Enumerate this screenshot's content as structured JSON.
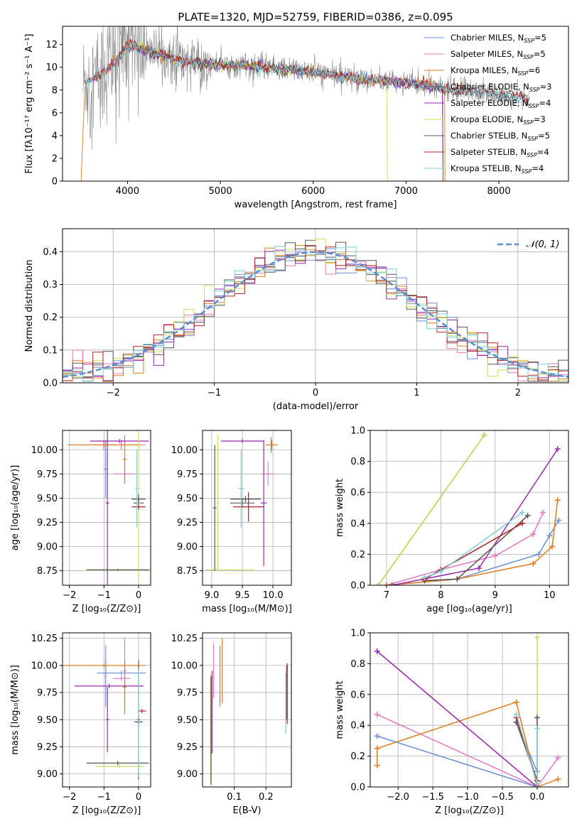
{
  "title": "PLATE=1320, MJD=52759, FIBERID=0386, z=0.095",
  "colors": {
    "Chabrier MILES": "#6a8fd8",
    "Salpeter MILES": "#e377c2",
    "Kroupa MILES": "#e07b1a",
    "Chabrier ELODIE": "#5a5a5a",
    "Salpeter ELODIE": "#9b27b0",
    "Kroupa ELODIE": "#c6e05a",
    "Chabrier STELIB": "#555555",
    "Salpeter STELIB": "#b22222",
    "Kroupa STELIB": "#7ccfdc",
    "gaussian": "#5b8bd6",
    "grid": "#b0b0b0"
  },
  "chart_data": [
    {
      "id": "spectrum",
      "type": "line",
      "title": "PLATE=1320, MJD=52759, FIBERID=0386, z=0.095",
      "xlabel": "wavelength [Angstrom, rest frame]",
      "ylabel": "Flux [fλ10⁻¹⁷ erg cm⁻² s⁻¹ A⁻¹]",
      "xlim": [
        3300,
        8750
      ],
      "ylim": [
        0,
        13.6
      ],
      "xticks": [
        "4000",
        "5000",
        "6000",
        "7000",
        "8000"
      ],
      "yticks": [
        "0",
        "2",
        "4",
        "6",
        "8",
        "10",
        "12"
      ],
      "grid": false,
      "legend_position": "top-right",
      "legend": [
        {
          "label": "Chabrier MILES, N",
          "sub": "SSP",
          "tail": "=5",
          "color_key": "Chabrier MILES"
        },
        {
          "label": "Salpeter MILES, N",
          "sub": "SSP",
          "tail": "=5",
          "color_key": "Salpeter MILES"
        },
        {
          "label": "Kroupa MILES, N",
          "sub": "SSP",
          "tail": "=6",
          "color_key": "Kroupa MILES"
        },
        {
          "label": "Chabrier ELODIE, N",
          "sub": "SSP",
          "tail": "=3",
          "color_key": "Chabrier ELODIE"
        },
        {
          "label": "Salpeter ELODIE, N",
          "sub": "SSP",
          "tail": "=4",
          "color_key": "Salpeter ELODIE"
        },
        {
          "label": "Kroupa ELODIE, N",
          "sub": "SSP",
          "tail": "=3",
          "color_key": "Kroupa ELODIE"
        },
        {
          "label": "Chabrier STELIB, N",
          "sub": "SSP",
          "tail": "=5",
          "color_key": "Chabrier STELIB"
        },
        {
          "label": "Salpeter STELIB, N",
          "sub": "SSP",
          "tail": "=4",
          "color_key": "Salpeter STELIB"
        },
        {
          "label": "Kroupa STELIB, N",
          "sub": "SSP",
          "tail": "=4",
          "color_key": "Kroupa STELIB"
        }
      ],
      "continuum": {
        "x": [
          3500,
          3700,
          3900,
          4000,
          4100,
          4300,
          4500,
          4700,
          5000,
          5300,
          5600,
          6000,
          6300,
          6600,
          6900,
          7200,
          7500,
          7800,
          8100,
          8300
        ],
        "y": [
          8.5,
          9.4,
          10.6,
          12.0,
          11.8,
          11.2,
          10.7,
          10.4,
          10.2,
          10.1,
          9.9,
          9.6,
          9.2,
          8.9,
          8.7,
          8.4,
          8.0,
          7.8,
          7.5,
          7.3
        ]
      },
      "data_series_color_key": "grid"
    },
    {
      "id": "residuals",
      "type": "histogram",
      "xlabel": "(data-model)/error",
      "ylabel": "Normed distribution",
      "xlim": [
        -2.5,
        2.5
      ],
      "ylim": [
        0,
        0.47
      ],
      "xticks": [
        "−2",
        "−1",
        "0",
        "1",
        "2"
      ],
      "yticks": [
        "0.0",
        "0.1",
        "0.2",
        "0.3",
        "0.4"
      ],
      "grid": true,
      "legend_position": "top-right",
      "legend_label": "𝒩(0, 1)",
      "bin_width": 0.1,
      "gaussian": {
        "mu": 0,
        "sigma": 1
      }
    },
    {
      "id": "age-vs-Z",
      "type": "errorbar",
      "xlabel": "Z [log₁₀(Z/Z⊙)]",
      "ylabel": "age  [log₁₀(age/yr)]",
      "xlim": [
        -2.2,
        0.35
      ],
      "ylim": [
        8.6,
        10.2
      ],
      "xticks": [
        "−2",
        "−1",
        "0"
      ],
      "yticks": [
        "8.75",
        "9.00",
        "9.25",
        "9.50",
        "9.75",
        "10.00"
      ],
      "grid": true,
      "points": [
        {
          "x": -1.0,
          "y": 10.05,
          "xerr": 1.0,
          "yerr": 0.05,
          "c": "Chabrier MILES"
        },
        {
          "x": -0.95,
          "y": 9.8,
          "xerr": 0.05,
          "yerr": 0.3,
          "c": "Chabrier MILES"
        },
        {
          "x": -0.4,
          "y": 9.75,
          "xerr": 0.3,
          "yerr": 0.1,
          "c": "Salpeter MILES"
        },
        {
          "x": -0.5,
          "y": 10.05,
          "xerr": 0.7,
          "yerr": 0.05,
          "c": "Salpeter MILES"
        },
        {
          "x": -1.0,
          "y": 10.05,
          "xerr": 1.05,
          "yerr": 0.04,
          "c": "Kroupa MILES"
        },
        {
          "x": -0.4,
          "y": 9.9,
          "xerr": 0.05,
          "yerr": 0.25,
          "c": "Kroupa MILES"
        },
        {
          "x": 0.0,
          "y": 9.45,
          "xerr": 0.15,
          "yerr": 0.05,
          "c": "Chabrier ELODIE"
        },
        {
          "x": -0.9,
          "y": 9.45,
          "xerr": 0.05,
          "yerr": 1.3,
          "c": "Salpeter ELODIE"
        },
        {
          "x": -0.55,
          "y": 10.09,
          "xerr": 0.85,
          "yerr": 0.02,
          "c": "Salpeter ELODIE"
        },
        {
          "x": -0.6,
          "y": 8.76,
          "xerr": 0.95,
          "yerr": 0.01,
          "c": "Kroupa ELODIE"
        },
        {
          "x": 0.0,
          "y": 9.45,
          "xerr": 0.05,
          "yerr": 0.8,
          "c": "Kroupa ELODIE"
        },
        {
          "x": 0.0,
          "y": 9.49,
          "xerr": 0.2,
          "yerr": 0.05,
          "c": "Chabrier STELIB"
        },
        {
          "x": 0.0,
          "y": 9.41,
          "xerr": 0.2,
          "yerr": 0.03,
          "c": "Salpeter STELIB"
        },
        {
          "x": -0.6,
          "y": 8.76,
          "xerr": 0.9,
          "yerr": 0.01,
          "c": "Chabrier STELIB"
        },
        {
          "x": -0.05,
          "y": 9.6,
          "xerr": 0.05,
          "yerr": 0.4,
          "c": "Kroupa STELIB"
        }
      ]
    },
    {
      "id": "age-vs-mass",
      "type": "errorbar",
      "xlabel": "mass [log₁₀(M/M⊙)]",
      "ylabel": "",
      "xlim": [
        8.85,
        10.3
      ],
      "ylim": [
        8.6,
        10.2
      ],
      "xticks": [
        "9.0",
        "9.5",
        "10.0"
      ],
      "yticks": [
        "8.75",
        "9.00",
        "9.25",
        "9.50",
        "9.75",
        "10.00"
      ],
      "grid": true,
      "points": [
        {
          "x": 9.97,
          "y": 10.05,
          "xerr": 0.06,
          "yerr": 0.08,
          "c": "Chabrier MILES"
        },
        {
          "x": 9.92,
          "y": 9.75,
          "xerr": 0.12,
          "yerr": 0.12,
          "c": "Salpeter MILES"
        },
        {
          "x": 9.98,
          "y": 10.05,
          "xerr": 0.1,
          "yerr": 0.05,
          "c": "Kroupa MILES"
        },
        {
          "x": 9.5,
          "y": 9.45,
          "xerr": 0.2,
          "yerr": 0.05,
          "c": "Chabrier ELODIE"
        },
        {
          "x": 9.85,
          "y": 9.45,
          "xerr": 0.05,
          "yerr": 0.65,
          "c": "Salpeter ELODIE"
        },
        {
          "x": 9.5,
          "y": 10.09,
          "xerr": 0.35,
          "yerr": 0.02,
          "c": "Salpeter ELODIE"
        },
        {
          "x": 9.3,
          "y": 8.76,
          "xerr": 0.4,
          "yerr": 0.01,
          "c": "Kroupa ELODIE"
        },
        {
          "x": 9.1,
          "y": 9.45,
          "xerr": 0.02,
          "yerr": 0.7,
          "c": "Kroupa ELODIE"
        },
        {
          "x": 9.55,
          "y": 9.49,
          "xerr": 0.25,
          "yerr": 0.03,
          "c": "Chabrier STELIB"
        },
        {
          "x": 9.6,
          "y": 9.41,
          "xerr": 0.25,
          "yerr": 0.15,
          "c": "Salpeter STELIB"
        },
        {
          "x": 9.05,
          "y": 9.4,
          "xerr": 0.03,
          "yerr": 0.65,
          "c": "Chabrier STELIB"
        },
        {
          "x": 9.48,
          "y": 9.6,
          "xerr": 0.05,
          "yerr": 0.4,
          "c": "Kroupa STELIB"
        }
      ]
    },
    {
      "id": "mass-weight-vs-age",
      "type": "line",
      "xlabel": "age  [log₁₀(age/yr)]",
      "ylabel": "mass weight",
      "xlim": [
        6.7,
        10.35
      ],
      "ylim": [
        0,
        1.0
      ],
      "xticks": [
        "7",
        "8",
        "9",
        "10"
      ],
      "yticks": [
        "0.0",
        "0.2",
        "0.4",
        "0.6",
        "0.8",
        "1.0"
      ],
      "grid": true,
      "series": [
        {
          "c": "Chabrier MILES",
          "x": [
            7.0,
            8.3,
            9.8,
            10.0,
            10.17
          ],
          "y": [
            0.0,
            0.04,
            0.2,
            0.32,
            0.42
          ]
        },
        {
          "c": "Salpeter MILES",
          "x": [
            7.0,
            8.0,
            9.0,
            9.7,
            9.88
          ],
          "y": [
            0.0,
            0.1,
            0.19,
            0.33,
            0.47
          ]
        },
        {
          "c": "Kroupa MILES",
          "x": [
            7.0,
            8.3,
            9.7,
            10.05,
            10.15
          ],
          "y": [
            0.0,
            0.04,
            0.14,
            0.25,
            0.55
          ]
        },
        {
          "c": "Chabrier ELODIE",
          "x": [
            6.85,
            8.8
          ],
          "y": [
            0.0,
            0.97
          ]
        },
        {
          "c": "Salpeter ELODIE",
          "x": [
            7.1,
            8.7,
            10.15
          ],
          "y": [
            0.0,
            0.11,
            0.88
          ]
        },
        {
          "c": "Kroupa ELODIE",
          "x": [
            6.85,
            8.8
          ],
          "y": [
            0.0,
            0.97
          ]
        },
        {
          "c": "Chabrier STELIB",
          "x": [
            7.7,
            8.3,
            9.6
          ],
          "y": [
            0.03,
            0.04,
            0.45
          ]
        },
        {
          "c": "Salpeter STELIB",
          "x": [
            7.7,
            8.0,
            9.5
          ],
          "y": [
            0.04,
            0.1,
            0.4
          ]
        },
        {
          "c": "Kroupa STELIB",
          "x": [
            7.7,
            8.0,
            9.5
          ],
          "y": [
            0.05,
            0.09,
            0.47
          ]
        }
      ]
    },
    {
      "id": "mass-vs-Z",
      "type": "errorbar",
      "xlabel": "Z [log₁₀(Z/Z⊙)]",
      "ylabel": "mass [log₁₀(M/M⊙)]",
      "xlim": [
        -2.2,
        0.35
      ],
      "ylim": [
        8.88,
        10.3
      ],
      "xticks": [
        "−2",
        "−1",
        "0"
      ],
      "yticks": [
        "9.00",
        "9.25",
        "9.50",
        "9.75",
        "10.00",
        "10.25"
      ],
      "grid": true,
      "points": [
        {
          "x": -0.95,
          "y": 9.9,
          "xerr": 0.02,
          "yerr": 0.28,
          "c": "Chabrier MILES"
        },
        {
          "x": -0.5,
          "y": 9.93,
          "xerr": 0.7,
          "yerr": 0.02,
          "c": "Chabrier MILES"
        },
        {
          "x": -0.4,
          "y": 9.95,
          "xerr": 0.05,
          "yerr": 0.3,
          "c": "Salpeter MILES"
        },
        {
          "x": -0.5,
          "y": 9.88,
          "xerr": 0.25,
          "yerr": 0.02,
          "c": "Salpeter MILES"
        },
        {
          "x": -1.0,
          "y": 10.0,
          "xerr": 1.2,
          "yerr": 0.02,
          "c": "Kroupa MILES"
        },
        {
          "x": -0.4,
          "y": 9.8,
          "xerr": 0.05,
          "yerr": 0.25,
          "c": "Kroupa MILES"
        },
        {
          "x": -0.9,
          "y": 9.5,
          "xerr": 0.05,
          "yerr": 0.3,
          "c": "Salpeter ELODIE"
        },
        {
          "x": -0.85,
          "y": 9.81,
          "xerr": 1.0,
          "yerr": 0.02,
          "c": "Salpeter ELODIE"
        },
        {
          "x": -0.55,
          "y": 9.07,
          "xerr": 0.7,
          "yerr": 0.02,
          "c": "Kroupa ELODIE"
        },
        {
          "x": 0.0,
          "y": 9.5,
          "xerr": 0.05,
          "yerr": 0.55,
          "c": "Chabrier ELODIE"
        },
        {
          "x": -0.6,
          "y": 9.1,
          "xerr": 0.9,
          "yerr": 0.02,
          "c": "Chabrier STELIB"
        },
        {
          "x": 0.1,
          "y": 9.58,
          "xerr": 0.12,
          "yerr": 0.02,
          "c": "Salpeter STELIB"
        },
        {
          "x": 0.0,
          "y": 9.48,
          "xerr": 0.12,
          "yerr": 0.05,
          "c": "Chabrier STELIB"
        },
        {
          "x": 0.0,
          "y": 9.47,
          "xerr": 0.05,
          "yerr": 0.5,
          "c": "Kroupa STELIB"
        }
      ]
    },
    {
      "id": "mass-vs-EBV",
      "type": "errorbar",
      "xlabel": "E(B-V)",
      "ylabel": "",
      "xlim": [
        0.0,
        0.28
      ],
      "ylim": [
        8.88,
        10.3
      ],
      "xticks": [
        "0.1",
        "0.2"
      ],
      "yticks": [
        "9.00",
        "9.25",
        "9.50",
        "9.75",
        "10.00",
        "10.25"
      ],
      "grid": true,
      "points": [
        {
          "x": 0.055,
          "y": 9.9,
          "xerr": 0.0,
          "yerr": 0.28,
          "c": "Chabrier MILES"
        },
        {
          "x": 0.035,
          "y": 9.95,
          "xerr": 0.0,
          "yerr": 0.25,
          "c": "Salpeter MILES"
        },
        {
          "x": 0.062,
          "y": 9.95,
          "xerr": 0.0,
          "yerr": 0.3,
          "c": "Kroupa MILES"
        },
        {
          "x": 0.265,
          "y": 9.75,
          "xerr": 0.0,
          "yerr": 0.25,
          "c": "Chabrier ELODIE"
        },
        {
          "x": 0.03,
          "y": 9.57,
          "xerr": 0.0,
          "yerr": 0.38,
          "c": "Salpeter ELODIE"
        },
        {
          "x": 0.025,
          "y": 9.42,
          "xerr": 0.0,
          "yerr": 0.5,
          "c": "Kroupa ELODIE"
        },
        {
          "x": 0.027,
          "y": 9.4,
          "xerr": 0.0,
          "yerr": 0.5,
          "c": "Chabrier STELIB"
        },
        {
          "x": 0.267,
          "y": 9.74,
          "xerr": 0.0,
          "yerr": 0.28,
          "c": "Salpeter STELIB"
        },
        {
          "x": 0.262,
          "y": 9.65,
          "xerr": 0.0,
          "yerr": 0.28,
          "c": "Kroupa STELIB"
        }
      ]
    },
    {
      "id": "mass-weight-vs-Z",
      "type": "line",
      "xlabel": "Z [log₁₀(Z/Z⊙)]",
      "ylabel": "mass weight",
      "xlim": [
        -2.4,
        0.45
      ],
      "ylim": [
        0,
        1.0
      ],
      "xticks": [
        "−2.0",
        "−1.5",
        "−1.0",
        "−0.5",
        "0.0"
      ],
      "yticks": [
        "0.0",
        "0.2",
        "0.4",
        "0.6",
        "0.8",
        "1.0"
      ],
      "grid": true,
      "series": [
        {
          "c": "Chabrier MILES",
          "x": [
            -2.3,
            0.0,
            0.0,
            -0.3
          ],
          "y": [
            0.33,
            0.0,
            0.1,
            0.42
          ]
        },
        {
          "c": "Salpeter MILES",
          "x": [
            -2.3,
            0.0,
            0.3
          ],
          "y": [
            0.47,
            0.0,
            0.19
          ]
        },
        {
          "c": "Kroupa MILES",
          "x": [
            -2.3,
            -2.3,
            -0.3,
            0.0,
            0.3
          ],
          "y": [
            0.14,
            0.25,
            0.55,
            0.0,
            0.05
          ]
        },
        {
          "c": "Salpeter ELODIE",
          "x": [
            -2.3,
            0.0
          ],
          "y": [
            0.88,
            0.0
          ]
        },
        {
          "c": "Kroupa ELODIE",
          "x": [
            0.0,
            0.0
          ],
          "y": [
            0.0,
            0.97
          ]
        },
        {
          "c": "Chabrier STELIB",
          "x": [
            -0.3,
            0.0,
            0.0
          ],
          "y": [
            0.42,
            0.04,
            0.45
          ]
        },
        {
          "c": "Salpeter STELIB",
          "x": [
            -0.3,
            0.0
          ],
          "y": [
            0.45,
            0.04
          ]
        },
        {
          "c": "Kroupa STELIB",
          "x": [
            -0.3,
            0.0,
            0.0
          ],
          "y": [
            0.47,
            0.02,
            0.38
          ]
        }
      ]
    }
  ]
}
